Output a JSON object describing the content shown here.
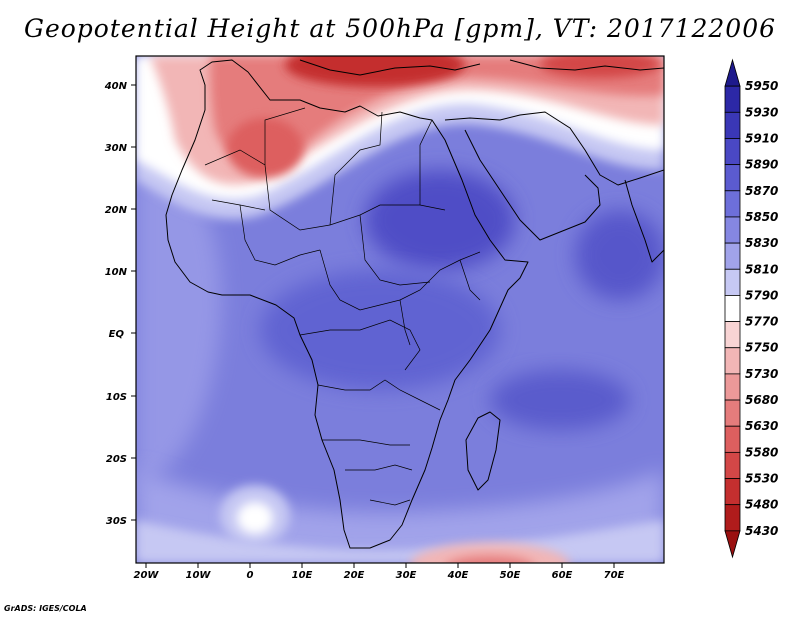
{
  "title": "Geopotential Height at 500hPa [gpm], VT: 2017122006",
  "credit": "GrADS: IGES/COLA",
  "axes": {
    "lon_labels": [
      "20W",
      "10W",
      "0",
      "10E",
      "20E",
      "30E",
      "40E",
      "50E",
      "60E",
      "70E"
    ],
    "lat_labels": [
      "40N",
      "30N",
      "20N",
      "10N",
      "EQ",
      "10S",
      "20S",
      "30S"
    ]
  },
  "colorbar": {
    "levels": [
      "5950",
      "5930",
      "5910",
      "5890",
      "5870",
      "5850",
      "5830",
      "5810",
      "5790",
      "5770",
      "5750",
      "5730",
      "5680",
      "5630",
      "5580",
      "5530",
      "5480",
      "5430"
    ],
    "colors": [
      "#1e1a8c",
      "#2c28a6",
      "#3a37b6",
      "#4a48c4",
      "#5b5bd0",
      "#6d6fda",
      "#8587e2",
      "#a1a3ea",
      "#c6c8f3",
      "#ffffff",
      "#f8d4d4",
      "#f2b6b6",
      "#ec9999",
      "#e57c7c",
      "#dd5f5f",
      "#d34747",
      "#c42f2f",
      "#b01c1c",
      "#9a1010"
    ]
  },
  "colors": {
    "ocean_base": "#7f82e0",
    "land_line": "#000000"
  }
}
